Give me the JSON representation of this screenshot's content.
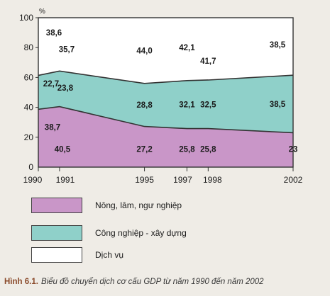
{
  "chart_data": {
    "type": "area",
    "stacked": true,
    "unit_label": "%",
    "x": [
      1990,
      1991,
      1995,
      1997,
      1998,
      2002
    ],
    "ylim": [
      0,
      100
    ],
    "yticks": [
      "0",
      "20",
      "40",
      "60",
      "80",
      "100"
    ],
    "xtick_labels": [
      "1990",
      "1991",
      "1995",
      "1997",
      "1998",
      "2002"
    ],
    "series": [
      {
        "name": "Nông, lâm, ngư nghiệp",
        "values": [
          38.7,
          40.5,
          27.2,
          25.8,
          25.8,
          23
        ],
        "labels": [
          "38,7",
          "40,5",
          "27,2",
          "25,8",
          "25,8",
          "23"
        ],
        "color": "#c996c8"
      },
      {
        "name": "Công nghiệp - xây dựng",
        "values": [
          22.7,
          23.8,
          28.8,
          32.1,
          32.5,
          38.5
        ],
        "labels": [
          "22,7",
          "23,8",
          "28,8",
          "32,1",
          "32,5",
          "38,5"
        ],
        "color": "#8fd0c9"
      },
      {
        "name": "Dịch vụ",
        "values": [
          38.6,
          35.7,
          44.0,
          42.1,
          41.7,
          38.5
        ],
        "labels": [
          "38,6",
          "35,7",
          "44,0",
          "42,1",
          "41,7",
          "38,5"
        ],
        "color": "#ffffff"
      }
    ],
    "legend_position": "bottom-left"
  },
  "caption": {
    "number": "Hình 6.1.",
    "text": "Biểu đồ chuyển dịch cơ cấu GDP từ năm 1990 đến năm 2002"
  }
}
